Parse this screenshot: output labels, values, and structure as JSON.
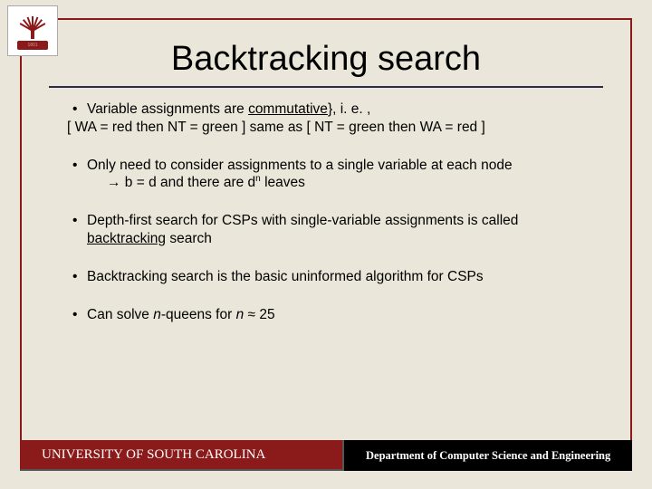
{
  "logo": {
    "year": "1801"
  },
  "title": "Backtracking search",
  "bullets": {
    "b1_line1_pre": "Variable assignments are ",
    "b1_line1_u": "commutative",
    "b1_line1_post": "}, i. e. ,",
    "b1_line2": "[ WA = red then NT = green ] same as [ NT = green then WA = red ]",
    "b2_line1": "Only need to consider assignments to a single variable at each node",
    "b2_arrow": "→ b = d and there are d",
    "b2_sup": "n",
    "b2_post": " leaves",
    "b3_pre": "Depth-first search for CSPs with single-variable assignments is called ",
    "b3_u": "backtracking",
    "b3_post": " search",
    "b4": "Backtracking search is the basic uninformed algorithm for CSPs",
    "b5_pre": "Can solve ",
    "b5_i1": "n",
    "b5_mid": "-queens for ",
    "b5_i2": "n",
    "b5_post": " ≈ 25"
  },
  "footer": {
    "left": "UNIVERSITY OF SOUTH CAROLINA",
    "right": "Department of Computer Science and Engineering"
  },
  "colors": {
    "background": "#eae6d9",
    "frame_border": "#8b1a1a",
    "footer_left_bg": "#8b1a1a",
    "footer_right_bg": "#000000",
    "text": "#000000"
  }
}
